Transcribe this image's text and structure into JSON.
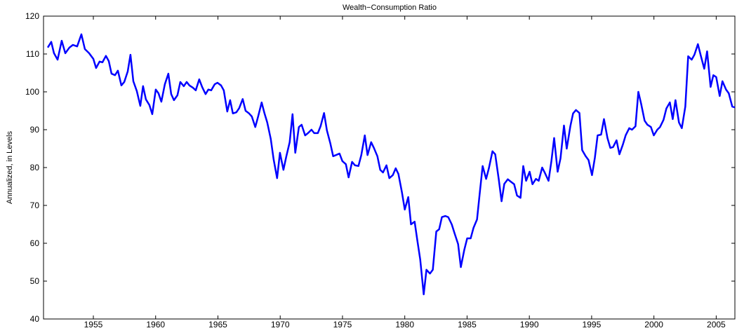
{
  "chart_data": {
    "type": "line",
    "title": "Wealth−Consumption Ratio",
    "ylabel": "Annualized, in Levels",
    "xlim": [
      1951,
      2006.5
    ],
    "ylim": [
      40,
      120
    ],
    "xticks": [
      1955,
      1960,
      1965,
      1970,
      1975,
      1980,
      1985,
      1990,
      1995,
      2000,
      2005
    ],
    "yticks": [
      40,
      50,
      60,
      70,
      80,
      90,
      100,
      110,
      120
    ],
    "grid": false,
    "x": [
      1951.34,
      1951.62,
      1951.84,
      1952.13,
      1952.46,
      1952.75,
      1953.08,
      1953.36,
      1953.7,
      1954.04,
      1954.32,
      1954.66,
      1955.0,
      1955.22,
      1955.5,
      1955.73,
      1956.01,
      1956.24,
      1956.46,
      1956.74,
      1956.97,
      1957.25,
      1957.48,
      1957.76,
      1957.98,
      1958.21,
      1958.49,
      1958.77,
      1958.99,
      1959.22,
      1959.5,
      1959.73,
      1960.01,
      1960.23,
      1960.46,
      1960.74,
      1961.02,
      1961.25,
      1961.47,
      1961.75,
      1961.98,
      1962.26,
      1962.49,
      1962.71,
      1962.99,
      1963.22,
      1963.5,
      1963.73,
      1964.01,
      1964.23,
      1964.46,
      1964.74,
      1964.96,
      1965.25,
      1965.47,
      1965.75,
      1965.98,
      1966.2,
      1966.48,
      1966.71,
      1966.99,
      1967.22,
      1967.5,
      1967.72,
      1968.0,
      1968.23,
      1968.51,
      1968.74,
      1968.96,
      1969.24,
      1969.47,
      1969.75,
      1969.98,
      1970.26,
      1970.48,
      1970.76,
      1970.99,
      1971.21,
      1971.5,
      1971.72,
      1972.0,
      1972.23,
      1972.51,
      1972.73,
      1973.02,
      1973.24,
      1973.52,
      1973.75,
      1974.03,
      1974.25,
      1974.48,
      1974.76,
      1974.99,
      1975.27,
      1975.49,
      1975.77,
      1976.0,
      1976.28,
      1976.51,
      1976.79,
      1977.01,
      1977.3,
      1977.52,
      1977.8,
      1978.03,
      1978.25,
      1978.53,
      1978.76,
      1979.04,
      1979.27,
      1979.49,
      1979.77,
      1980.0,
      1980.28,
      1980.5,
      1980.79,
      1981.01,
      1981.24,
      1981.52,
      1981.74,
      1982.02,
      1982.25,
      1982.53,
      1982.76,
      1982.98,
      1983.26,
      1983.49,
      1983.77,
      1984.0,
      1984.28,
      1984.5,
      1984.78,
      1985.01,
      1985.29,
      1985.52,
      1985.8,
      1986.02,
      1986.25,
      1986.53,
      1986.75,
      1987.04,
      1987.26,
      1987.54,
      1987.77,
      1987.99,
      1988.27,
      1988.5,
      1988.78,
      1989.01,
      1989.29,
      1989.51,
      1989.74,
      1990.02,
      1990.25,
      1990.53,
      1990.75,
      1991.03,
      1991.26,
      1991.54,
      1991.77,
      1991.99,
      1992.27,
      1992.5,
      1992.78,
      1993.0,
      1993.29,
      1993.51,
      1993.74,
      1994.02,
      1994.24,
      1994.52,
      1994.75,
      1995.03,
      1995.26,
      1995.48,
      1995.76,
      1995.99,
      1996.27,
      1996.5,
      1996.72,
      1997.0,
      1997.23,
      1997.51,
      1997.73,
      1998.02,
      1998.24,
      1998.52,
      1998.75,
      1998.97,
      1999.25,
      1999.48,
      1999.76,
      1999.99,
      2000.27,
      2000.49,
      2000.77,
      2001.0,
      2001.28,
      2001.51,
      2001.73,
      2002.01,
      2002.24,
      2002.52,
      2002.75,
      2003.03,
      2003.25,
      2003.53,
      2003.76,
      2004.04,
      2004.27,
      2004.55,
      2004.77,
      2005.0,
      2005.28,
      2005.5,
      2005.79,
      2006.01,
      2006.29,
      2006.5
    ],
    "series": [
      {
        "color": "#0000ff",
        "values": [
          111.7,
          113.2,
          110.2,
          108.5,
          113.5,
          110.2,
          111.7,
          112.4,
          112.0,
          115.2,
          111.3,
          110.2,
          108.7,
          106.3,
          108.0,
          107.8,
          109.5,
          108.1,
          104.8,
          104.4,
          105.6,
          101.7,
          102.6,
          105.4,
          109.8,
          102.8,
          100.2,
          96.3,
          101.5,
          98.0,
          96.5,
          94.1,
          100.6,
          99.6,
          97.4,
          102.0,
          104.8,
          99.4,
          97.8,
          99.1,
          102.6,
          101.5,
          102.6,
          101.7,
          101.1,
          100.4,
          103.3,
          101.3,
          99.4,
          100.6,
          100.4,
          102.0,
          102.4,
          101.7,
          100.4,
          94.8,
          97.8,
          94.3,
          94.6,
          95.7,
          98.1,
          95.0,
          94.3,
          93.5,
          90.7,
          93.5,
          97.2,
          94.3,
          91.9,
          87.6,
          82.2,
          77.2,
          83.9,
          79.4,
          82.8,
          86.7,
          94.1,
          83.9,
          90.7,
          91.3,
          88.5,
          89.1,
          90.0,
          89.1,
          89.1,
          90.9,
          94.4,
          89.8,
          86.3,
          83.0,
          83.3,
          83.7,
          81.7,
          80.9,
          77.4,
          81.5,
          80.6,
          80.4,
          83.3,
          88.5,
          83.3,
          86.7,
          85.2,
          83.0,
          79.4,
          78.7,
          80.6,
          77.2,
          78.0,
          79.8,
          78.3,
          73.5,
          68.9,
          72.2,
          65.0,
          65.7,
          60.7,
          55.7,
          46.5,
          53.0,
          52.0,
          53.0,
          63.1,
          63.7,
          66.9,
          67.2,
          66.9,
          65.0,
          62.6,
          59.8,
          53.7,
          58.3,
          61.3,
          61.3,
          64.1,
          66.3,
          73.3,
          80.4,
          77.0,
          79.8,
          84.3,
          83.5,
          77.0,
          71.1,
          75.7,
          76.9,
          76.3,
          75.6,
          72.6,
          72.0,
          80.4,
          76.5,
          78.9,
          75.6,
          77.0,
          76.5,
          80.0,
          78.5,
          76.5,
          81.7,
          87.8,
          78.9,
          82.4,
          91.1,
          85.0,
          90.9,
          94.3,
          95.2,
          94.4,
          84.6,
          83.0,
          82.0,
          78.0,
          82.6,
          88.5,
          88.7,
          92.8,
          87.8,
          85.2,
          85.4,
          87.2,
          83.5,
          86.1,
          88.5,
          90.4,
          90.0,
          90.9,
          100.0,
          96.9,
          92.4,
          91.3,
          90.7,
          88.5,
          90.0,
          90.7,
          92.6,
          95.6,
          97.2,
          92.8,
          97.8,
          91.9,
          90.4,
          96.1,
          109.4,
          108.5,
          109.8,
          112.6,
          109.6,
          106.1,
          110.7,
          101.3,
          104.4,
          103.9,
          98.9,
          102.8,
          100.6,
          99.6,
          96.1,
          95.9
        ]
      }
    ]
  }
}
